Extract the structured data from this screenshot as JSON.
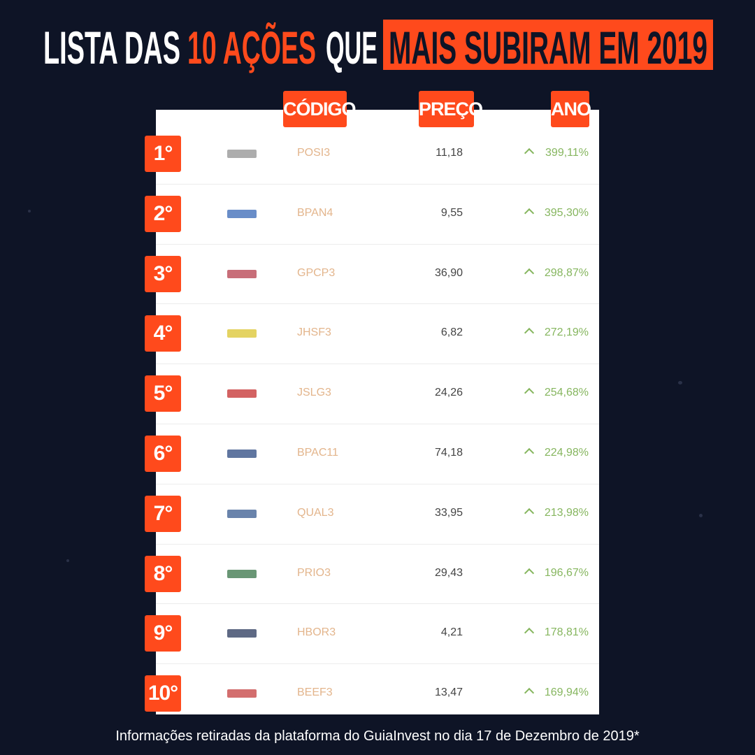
{
  "header": {
    "title_part1": "LISTA DAS",
    "title_highlight1": "10 AÇÕES",
    "title_part2": "QUE",
    "title_highlight2": "MAIS SUBIRAM EM 2019"
  },
  "table": {
    "columns": [
      "CÓDIGO",
      "PREÇO",
      "ANO"
    ],
    "rows": [
      [
        "1°",
        "POSI3",
        "11,18",
        "399,11%"
      ],
      [
        "2°",
        "BPAN4",
        "9,55",
        "395,30%"
      ],
      [
        "3°",
        "GPCP3",
        "36,90",
        "298,87%"
      ],
      [
        "4°",
        "JHSF3",
        "6,82",
        "272,19%"
      ],
      [
        "5°",
        "JSLG3",
        "24,26",
        "254,68%"
      ],
      [
        "6°",
        "BPAC11",
        "74,18",
        "224,98%"
      ],
      [
        "7°",
        "QUAL3",
        "33,95",
        "213,98%"
      ],
      [
        "8°",
        "PRIO3",
        "29,43",
        "196,67%"
      ],
      [
        "9°",
        "HBOR3",
        "4,21",
        "178,81%"
      ],
      [
        "10°",
        "BEEF3",
        "13,47",
        "169,94%"
      ]
    ]
  },
  "footer": {
    "note": "Informações retiradas da plataforma do GuiaInvest no dia 17 de Dezembro de 2019*"
  }
}
